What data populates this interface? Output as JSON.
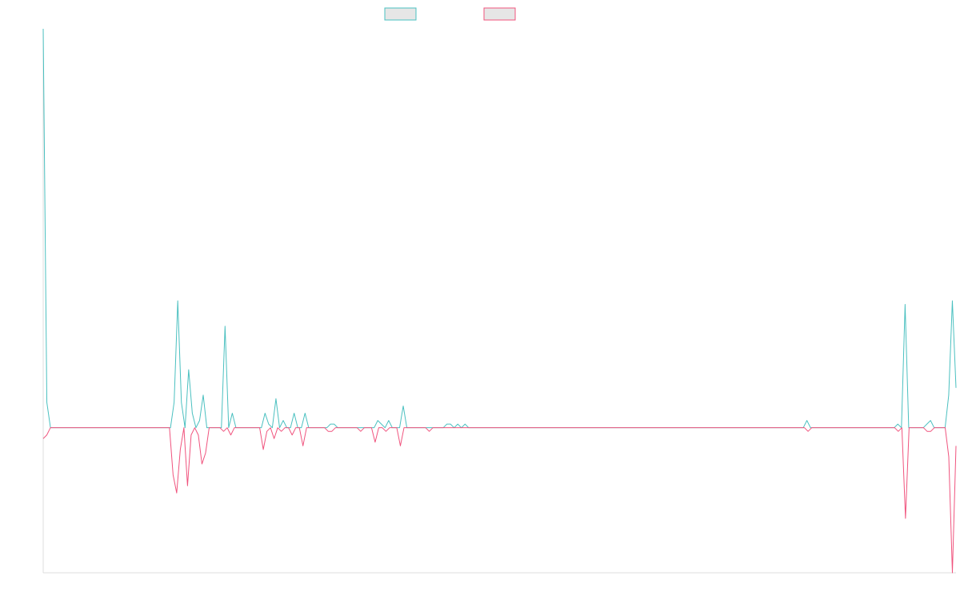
{
  "chart_data": {
    "type": "line",
    "title": "",
    "xlabel": "",
    "ylabel": "",
    "grid": false,
    "legend_position": "top-center",
    "xlim": [
      0,
      250
    ],
    "ylim": [
      -40,
      110
    ],
    "baseline": 0,
    "series": [
      {
        "name": "",
        "color": "#4bc0c0",
        "legend_fill": "#e6e6e6",
        "values": [
          110,
          7,
          0,
          0,
          0,
          0,
          0,
          0,
          0,
          0,
          0,
          0,
          0,
          0,
          0,
          0,
          0,
          0,
          0,
          0,
          0,
          0,
          0,
          0,
          0,
          0,
          0,
          0,
          0,
          0,
          0,
          0,
          0,
          0,
          0,
          0,
          7,
          35,
          7,
          0,
          16,
          4,
          0,
          2,
          9,
          0,
          0,
          0,
          0,
          0,
          28,
          0,
          4,
          0,
          0,
          0,
          0,
          0,
          0,
          0,
          0,
          4,
          1,
          0,
          8,
          0,
          2,
          0,
          0,
          4,
          0,
          0,
          4,
          0,
          0,
          0,
          0,
          0,
          0,
          1,
          1,
          0,
          0,
          0,
          0,
          0,
          0,
          0,
          0,
          0,
          0,
          0,
          2,
          1,
          0,
          2,
          0,
          0,
          0,
          6,
          0,
          0,
          0,
          0,
          0,
          0,
          0,
          0,
          0,
          0,
          0,
          1,
          1,
          0,
          1,
          0,
          1,
          0,
          0,
          0,
          0,
          0,
          0,
          0,
          0,
          0,
          0,
          0,
          0,
          0,
          0,
          0,
          0,
          0,
          0,
          0,
          0,
          0,
          0,
          0,
          0,
          0,
          0,
          0,
          0,
          0,
          0,
          0,
          0,
          0,
          0,
          0,
          0,
          0,
          0,
          0,
          0,
          0,
          0,
          0,
          0,
          0,
          0,
          0,
          0,
          0,
          0,
          0,
          0,
          0,
          0,
          0,
          0,
          0,
          0,
          0,
          0,
          0,
          0,
          0,
          0,
          0,
          0,
          0,
          0,
          0,
          0,
          0,
          0,
          0,
          0,
          0,
          0,
          0,
          0,
          0,
          0,
          0,
          0,
          0,
          0,
          0,
          0,
          0,
          0,
          0,
          0,
          0,
          0,
          0,
          2,
          0,
          0,
          0,
          0,
          0,
          0,
          0,
          0,
          0,
          0,
          0,
          0,
          0,
          0,
          0,
          0,
          0,
          0,
          0,
          0,
          0,
          0,
          0,
          0,
          1,
          0,
          34,
          0,
          0,
          0,
          0,
          0,
          1,
          2,
          0,
          0,
          0,
          0,
          9,
          35,
          11
        ]
      },
      {
        "name": "",
        "color": "#f0547e",
        "legend_fill": "#e6e6e6",
        "values": [
          -3,
          -2,
          0,
          0,
          0,
          0,
          0,
          0,
          0,
          0,
          0,
          0,
          0,
          0,
          0,
          0,
          0,
          0,
          0,
          0,
          0,
          0,
          0,
          0,
          0,
          0,
          0,
          0,
          0,
          0,
          0,
          0,
          0,
          0,
          0,
          0,
          -13,
          -18,
          -6,
          0,
          -16,
          -2,
          0,
          -2,
          -10,
          -7,
          0,
          0,
          0,
          0,
          -1,
          0,
          -2,
          0,
          0,
          0,
          0,
          0,
          0,
          0,
          0,
          -6,
          -1,
          0,
          -3,
          0,
          -1,
          0,
          0,
          -2,
          0,
          0,
          -5,
          0,
          0,
          0,
          0,
          0,
          0,
          -1,
          -1,
          0,
          0,
          0,
          0,
          0,
          0,
          0,
          -1,
          0,
          0,
          0,
          -4,
          0,
          0,
          -1,
          0,
          0,
          0,
          -5,
          0,
          0,
          0,
          0,
          0,
          0,
          0,
          -1,
          0,
          0,
          0,
          0,
          0,
          0,
          0,
          0,
          0,
          0,
          0,
          0,
          0,
          0,
          0,
          0,
          0,
          0,
          0,
          0,
          0,
          0,
          0,
          0,
          0,
          0,
          0,
          0,
          0,
          0,
          0,
          0,
          0,
          0,
          0,
          0,
          0,
          0,
          0,
          0,
          0,
          0,
          0,
          0,
          0,
          0,
          0,
          0,
          0,
          0,
          0,
          0,
          0,
          0,
          0,
          0,
          0,
          0,
          0,
          0,
          0,
          0,
          0,
          0,
          0,
          0,
          0,
          0,
          0,
          0,
          0,
          0,
          0,
          0,
          0,
          0,
          0,
          0,
          0,
          0,
          0,
          0,
          0,
          0,
          0,
          0,
          0,
          0,
          0,
          0,
          0,
          0,
          0,
          0,
          0,
          0,
          0,
          0,
          0,
          0,
          0,
          0,
          0,
          0,
          -1,
          0,
          0,
          0,
          0,
          0,
          0,
          0,
          0,
          0,
          0,
          0,
          0,
          0,
          0,
          0,
          0,
          0,
          0,
          0,
          0,
          0,
          0,
          0,
          0,
          -1,
          0,
          -25,
          0,
          0,
          0,
          0,
          0,
          -1,
          -1,
          0,
          0,
          0,
          0,
          -8,
          -40,
          -5
        ]
      }
    ]
  }
}
